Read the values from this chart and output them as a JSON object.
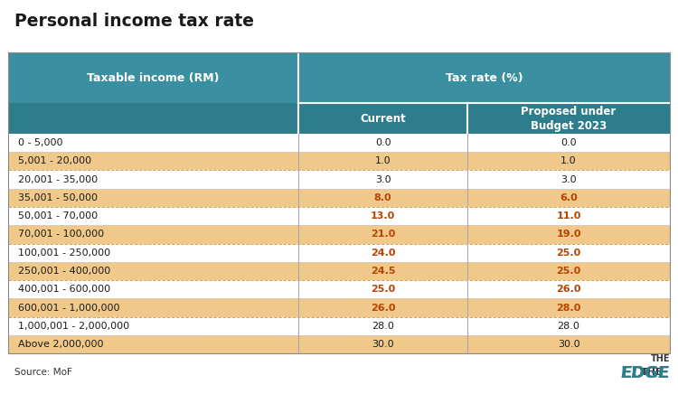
{
  "title": "Personal income tax rate",
  "header_col1": "Taxable income (RM)",
  "header_col2": "Tax rate (%)",
  "subheader_col2": "Current",
  "subheader_col3": "Proposed under\nBudget 2023",
  "rows": [
    {
      "income": "0 - 5,000",
      "current": "0.0",
      "proposed": "0.0",
      "highlighted": false,
      "changed": false
    },
    {
      "income": "5,001 - 20,000",
      "current": "1.0",
      "proposed": "1.0",
      "highlighted": true,
      "changed": false
    },
    {
      "income": "20,001 - 35,000",
      "current": "3.0",
      "proposed": "3.0",
      "highlighted": false,
      "changed": false
    },
    {
      "income": "35,001 - 50,000",
      "current": "8.0",
      "proposed": "6.0",
      "highlighted": true,
      "changed": true
    },
    {
      "income": "50,001 - 70,000",
      "current": "13.0",
      "proposed": "11.0",
      "highlighted": false,
      "changed": true
    },
    {
      "income": "70,001 - 100,000",
      "current": "21.0",
      "proposed": "19.0",
      "highlighted": true,
      "changed": true
    },
    {
      "income": "100,001 - 250,000",
      "current": "24.0",
      "proposed": "25.0",
      "highlighted": false,
      "changed": true
    },
    {
      "income": "250,001 - 400,000",
      "current": "24.5",
      "proposed": "25.0",
      "highlighted": true,
      "changed": true
    },
    {
      "income": "400,001 - 600,000",
      "current": "25.0",
      "proposed": "26.0",
      "highlighted": false,
      "changed": true
    },
    {
      "income": "600,001 - 1,000,000",
      "current": "26.0",
      "proposed": "28.0",
      "highlighted": true,
      "changed": true
    },
    {
      "income": "1,000,001 - 2,000,000",
      "current": "28.0",
      "proposed": "28.0",
      "highlighted": false,
      "changed": false
    },
    {
      "income": "Above 2,000,000",
      "current": "30.0",
      "proposed": "30.0",
      "highlighted": true,
      "changed": false
    }
  ],
  "source_text": "Source: MoF",
  "header_bg": "#3a8fa0",
  "subheader_bg": "#2e7d8c",
  "row_highlight_bg": "#f0c98a",
  "row_normal_bg": "#ffffff",
  "header_text_color": "#ffffff",
  "normal_text_color": "#1a1a1a",
  "changed_text_color": "#b84300",
  "title_color": "#1a1a1a",
  "border_color": "#c8a870",
  "col_divider_color": "#ffffff",
  "background_color": "#ffffff"
}
